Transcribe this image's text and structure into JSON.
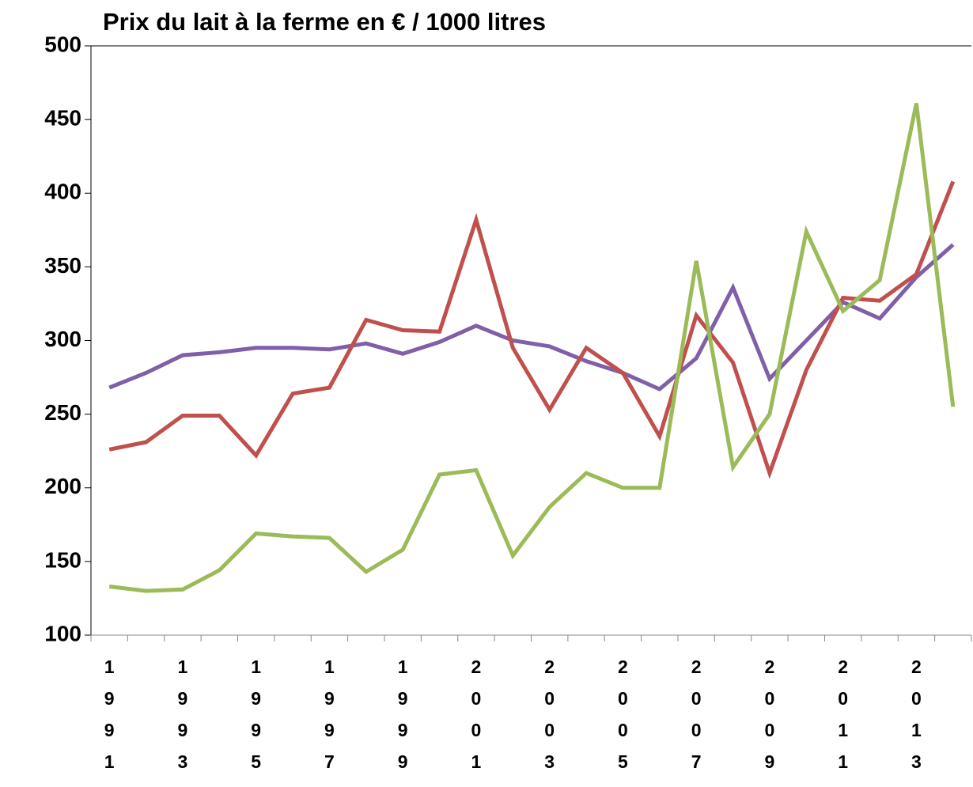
{
  "chart_data": {
    "type": "line",
    "title": "Prix du lait à la ferme en € / 1000 litres",
    "categories": [
      "1991",
      null,
      "1993",
      null,
      "1995",
      null,
      "1997",
      null,
      "1999",
      null,
      "2001",
      null,
      "2003",
      null,
      "2005",
      null,
      "2007",
      null,
      "2009",
      null,
      "2011",
      null,
      "2013",
      null
    ],
    "series": [
      {
        "color": "#7f60a8",
        "values": [
          268,
          278,
          290,
          292,
          295,
          295,
          294,
          298,
          291,
          299,
          310,
          300,
          296,
          286,
          278,
          267,
          288,
          336,
          274,
          300,
          326,
          315,
          343,
          365
        ]
      },
      {
        "color": "#c0504d",
        "values": [
          226,
          231,
          249,
          249,
          222,
          264,
          268,
          314,
          307,
          306,
          382,
          295,
          253,
          295,
          278,
          235,
          317,
          285,
          210,
          280,
          329,
          327,
          345,
          408
        ]
      },
      {
        "color": "#9bbb59",
        "values": [
          133,
          130,
          131,
          144,
          169,
          167,
          166,
          143,
          158,
          209,
          212,
          154,
          187,
          210,
          200,
          200,
          354,
          214,
          250,
          374,
          320,
          341,
          461,
          255
        ]
      }
    ],
    "ylim": [
      100,
      500
    ],
    "yticks": [
      100,
      150,
      200,
      250,
      300,
      350,
      400,
      450,
      500
    ],
    "grid": false
  }
}
